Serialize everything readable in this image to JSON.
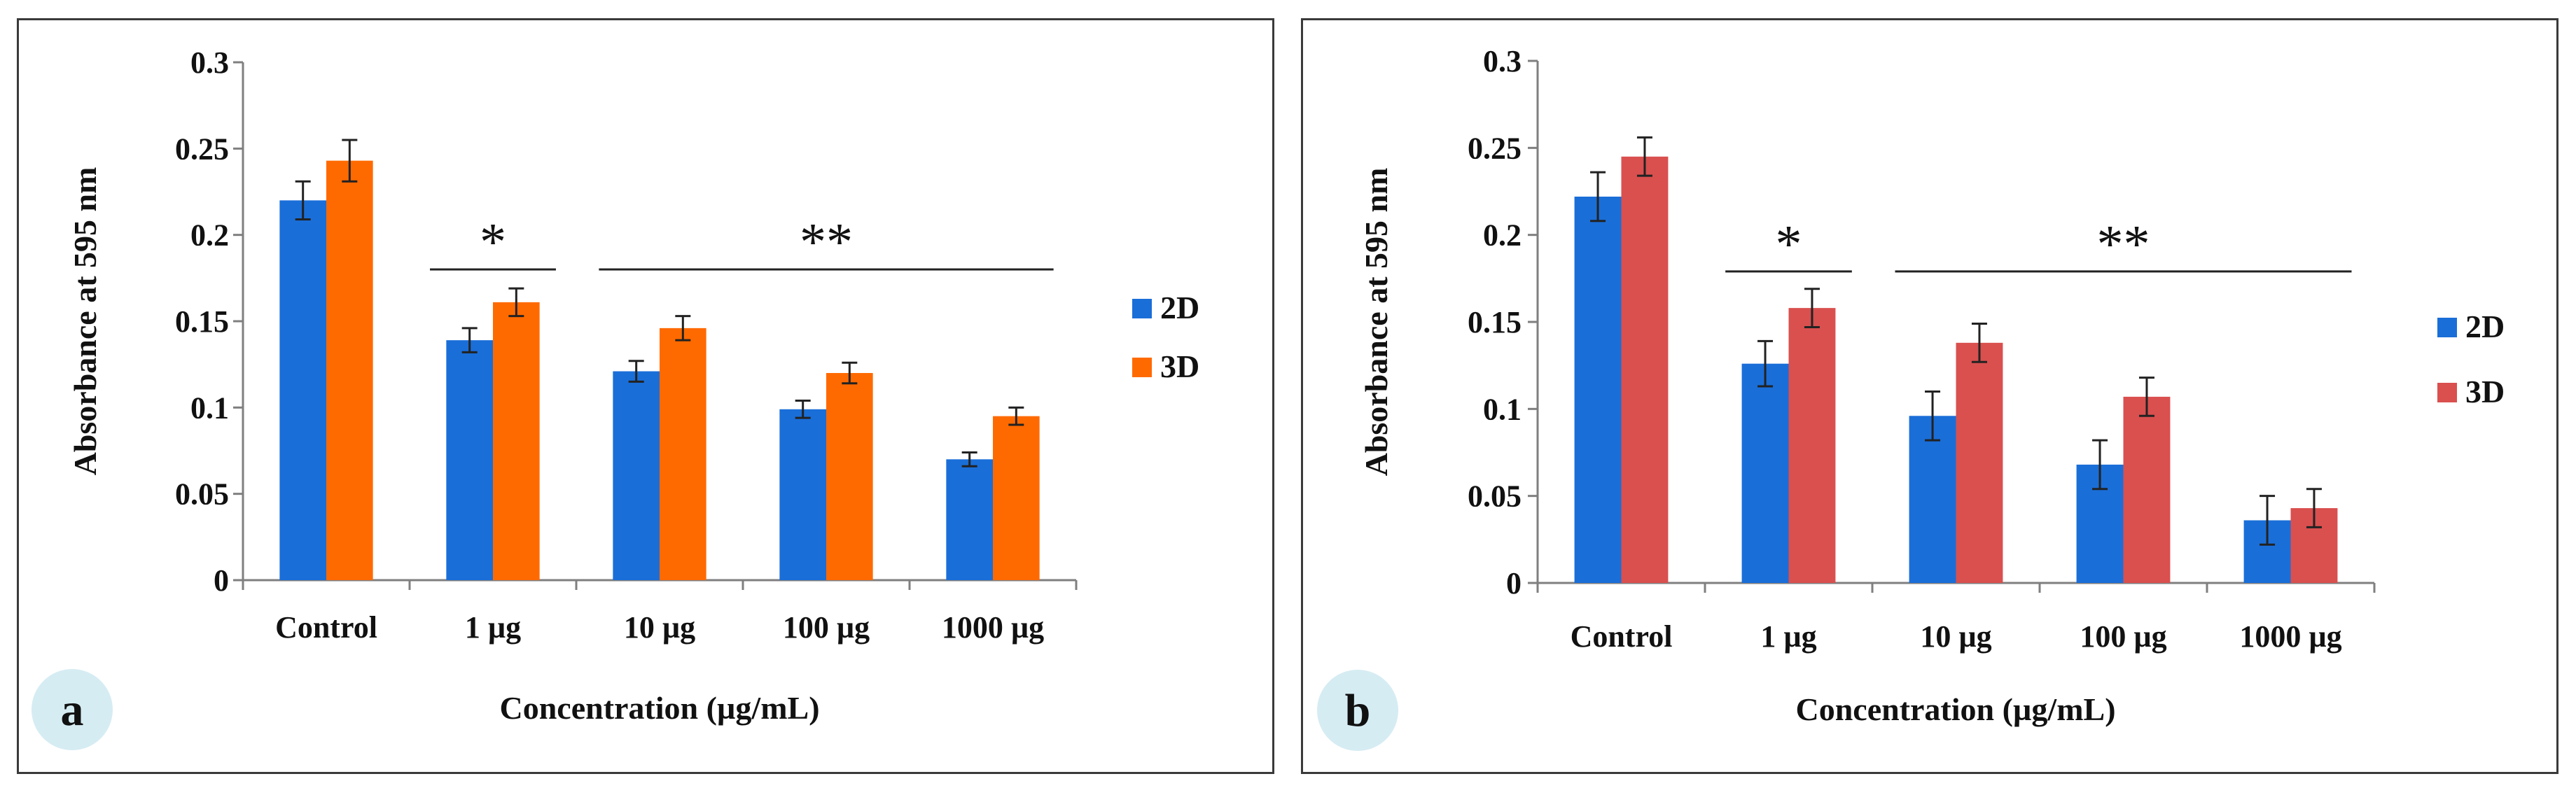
{
  "chart_data": [
    {
      "type": "bar",
      "panel_label": "a",
      "categories": [
        "Control",
        "1 µg",
        "10 µg",
        "100 µg",
        "1000 µg"
      ],
      "series": [
        {
          "name": "2D",
          "color": "#1a6ed8",
          "values": [
            0.22,
            0.139,
            0.121,
            0.099,
            0.07
          ],
          "errors": [
            0.011,
            0.007,
            0.006,
            0.005,
            0.004
          ]
        },
        {
          "name": "3D",
          "color": "#ff6a00",
          "values": [
            0.243,
            0.161,
            0.146,
            0.12,
            0.095
          ],
          "errors": [
            0.012,
            0.008,
            0.007,
            0.006,
            0.005
          ]
        }
      ],
      "xlabel": "Concentration (µg/mL)",
      "ylabel": "Absorbance at 595 nm",
      "ylim": [
        0,
        0.3
      ],
      "yticks": [
        "0",
        "0.05",
        "0.1",
        "0.15",
        "0.2",
        "0.25",
        "0.3"
      ],
      "ytick_values": [
        0,
        0.05,
        0.1,
        0.15,
        0.2,
        0.25,
        0.3
      ],
      "legend_position": "right",
      "significance": [
        {
          "label": "*",
          "from_category": 1,
          "to_category": 1,
          "y": 0.18
        },
        {
          "label": "**",
          "from_category": 2,
          "to_category": 4,
          "y": 0.18
        }
      ]
    },
    {
      "type": "bar",
      "panel_label": "b",
      "categories": [
        "Control",
        "1 µg",
        "10 µg",
        "100 µg",
        "1000 µg"
      ],
      "series": [
        {
          "name": "2D",
          "color": "#1a6ed8",
          "values": [
            0.222,
            0.126,
            0.096,
            0.068,
            0.036
          ],
          "errors": [
            0.014,
            0.013,
            0.014,
            0.014,
            0.014
          ]
        },
        {
          "name": "3D",
          "color": "#d9504f",
          "values": [
            0.245,
            0.158,
            0.138,
            0.107,
            0.043
          ],
          "errors": [
            0.011,
            0.011,
            0.011,
            0.011,
            0.011
          ]
        }
      ],
      "xlabel": "Concentration (µg/mL)",
      "ylabel": "Absorbance at 595 nm",
      "ylim": [
        0,
        0.3
      ],
      "yticks": [
        "0",
        "0.05",
        "0.1",
        "0.15",
        "0.2",
        "0.25",
        "0.3"
      ],
      "ytick_values": [
        0,
        0.05,
        0.1,
        0.15,
        0.2,
        0.25,
        0.3
      ],
      "legend_position": "right",
      "significance": [
        {
          "label": "*",
          "from_category": 1,
          "to_category": 1,
          "y": 0.179
        },
        {
          "label": "**",
          "from_category": 2,
          "to_category": 4,
          "y": 0.179
        }
      ]
    }
  ],
  "style": {
    "axis_color": "#7f7f7f",
    "error_color": "#222222",
    "badge_color": "#d6ecf3"
  }
}
